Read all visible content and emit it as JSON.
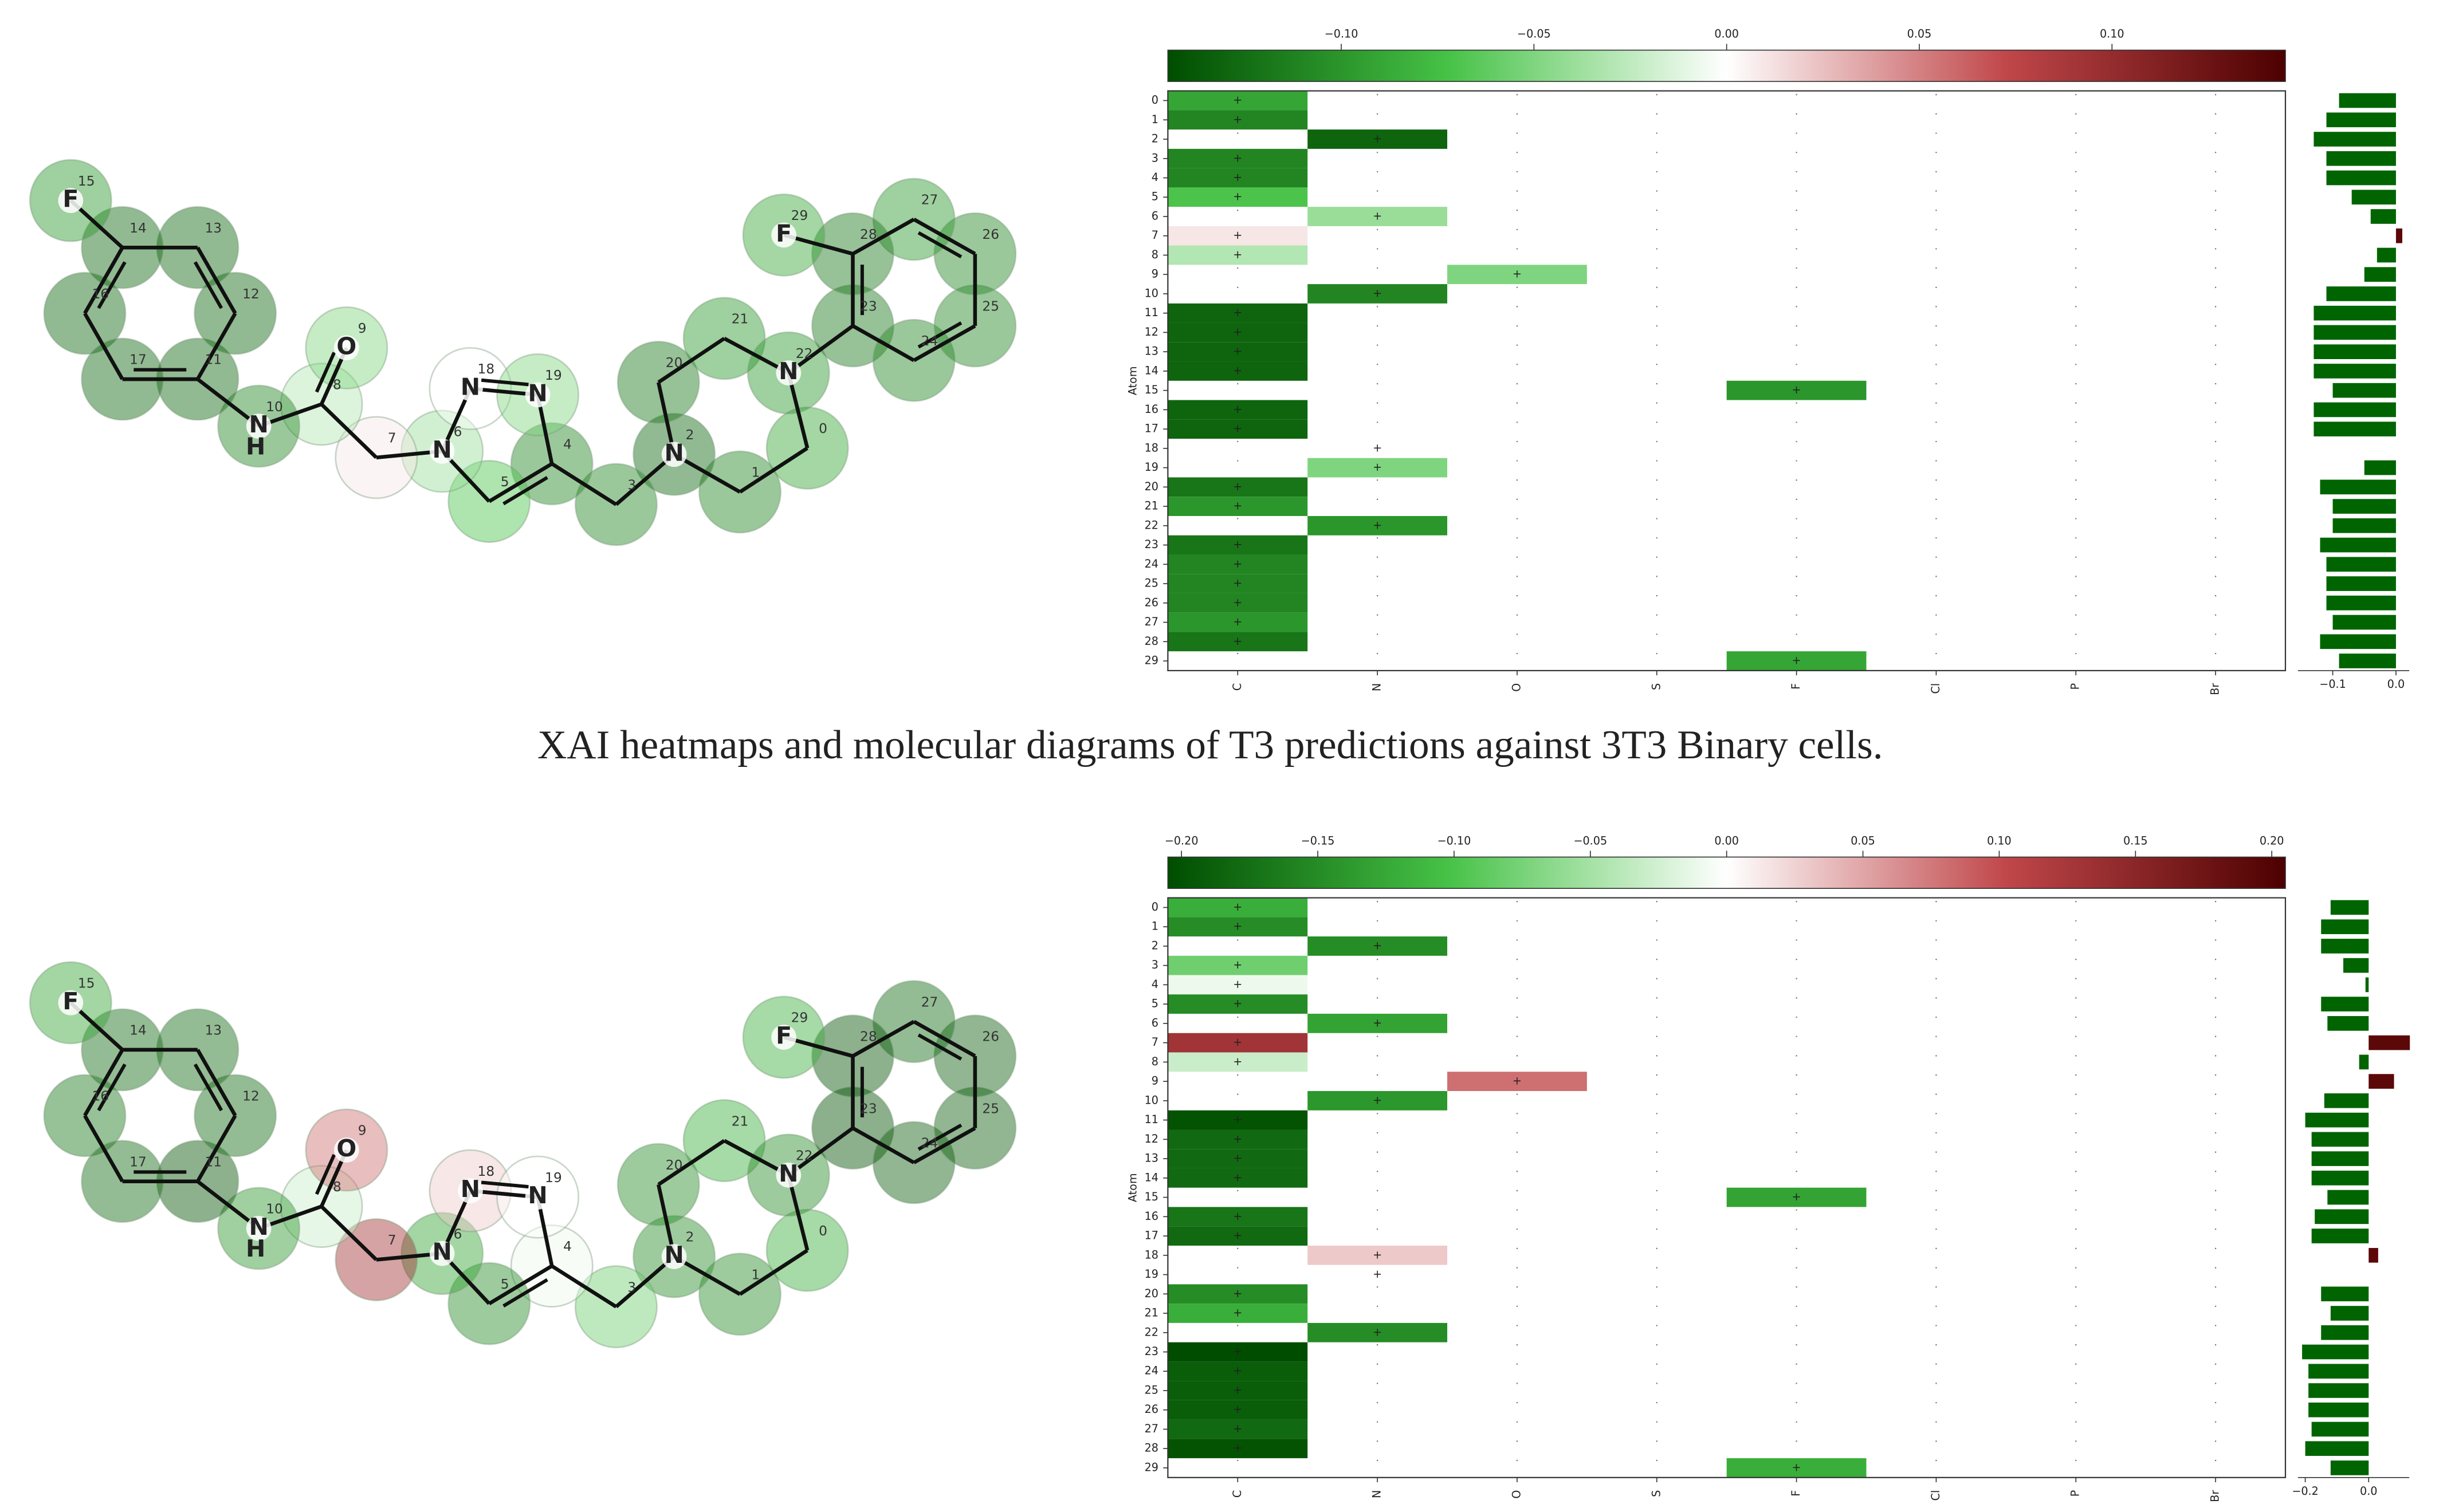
{
  "caption": "XAI heatmaps and molecular diagrams of T3 predictions against 3T3 Binary cells.",
  "panels": [
    {
      "molecule": {
        "symbols": [
          null,
          null,
          "N",
          null,
          null,
          null,
          "N",
          null,
          null,
          "O",
          "N",
          null,
          null,
          null,
          null,
          "F",
          null,
          null,
          "N",
          "N",
          null,
          null,
          "N",
          null,
          null,
          null,
          null,
          null,
          null,
          "F"
        ],
        "hydrogen": "H"
      },
      "heatmap": {
        "ylabel": "Atom",
        "rows": [
          0,
          1,
          2,
          3,
          4,
          5,
          6,
          7,
          8,
          9,
          10,
          11,
          12,
          13,
          14,
          15,
          16,
          17,
          18,
          19,
          20,
          21,
          22,
          23,
          24,
          25,
          26,
          27,
          28,
          29
        ],
        "columns": [
          "C",
          "N",
          "O",
          "S",
          "F",
          "Cl",
          "P",
          "Br"
        ],
        "cell_marker": "+",
        "z": [
          [
            -0.09,
            null,
            null,
            null,
            null,
            null,
            null,
            null
          ],
          [
            -0.11,
            null,
            null,
            null,
            null,
            null,
            null,
            null
          ],
          [
            null,
            -0.13,
            null,
            null,
            null,
            null,
            null,
            null
          ],
          [
            -0.11,
            null,
            null,
            null,
            null,
            null,
            null,
            null
          ],
          [
            -0.11,
            null,
            null,
            null,
            null,
            null,
            null,
            null
          ],
          [
            -0.07,
            null,
            null,
            null,
            null,
            null,
            null,
            null
          ],
          [
            null,
            -0.04,
            null,
            null,
            null,
            null,
            null,
            null
          ],
          [
            0.01,
            null,
            null,
            null,
            null,
            null,
            null,
            null
          ],
          [
            -0.03,
            null,
            null,
            null,
            null,
            null,
            null,
            null
          ],
          [
            null,
            null,
            -0.05,
            null,
            null,
            null,
            null,
            null
          ],
          [
            null,
            -0.11,
            null,
            null,
            null,
            null,
            null,
            null
          ],
          [
            -0.13,
            null,
            null,
            null,
            null,
            null,
            null,
            null
          ],
          [
            -0.13,
            null,
            null,
            null,
            null,
            null,
            null,
            null
          ],
          [
            -0.13,
            null,
            null,
            null,
            null,
            null,
            null,
            null
          ],
          [
            -0.13,
            null,
            null,
            null,
            null,
            null,
            null,
            null
          ],
          [
            null,
            null,
            null,
            null,
            -0.1,
            null,
            null,
            null
          ],
          [
            -0.13,
            null,
            null,
            null,
            null,
            null,
            null,
            null
          ],
          [
            -0.13,
            null,
            null,
            null,
            null,
            null,
            null,
            null
          ],
          [
            null,
            0.0,
            null,
            null,
            null,
            null,
            null,
            null
          ],
          [
            null,
            -0.05,
            null,
            null,
            null,
            null,
            null,
            null
          ],
          [
            -0.12,
            null,
            null,
            null,
            null,
            null,
            null,
            null
          ],
          [
            -0.1,
            null,
            null,
            null,
            null,
            null,
            null,
            null
          ],
          [
            null,
            -0.1,
            null,
            null,
            null,
            null,
            null,
            null
          ],
          [
            -0.12,
            null,
            null,
            null,
            null,
            null,
            null,
            null
          ],
          [
            -0.11,
            null,
            null,
            null,
            null,
            null,
            null,
            null
          ],
          [
            -0.11,
            null,
            null,
            null,
            null,
            null,
            null,
            null
          ],
          [
            -0.11,
            null,
            null,
            null,
            null,
            null,
            null,
            null
          ],
          [
            -0.1,
            null,
            null,
            null,
            null,
            null,
            null,
            null
          ],
          [
            -0.12,
            null,
            null,
            null,
            null,
            null,
            null,
            null
          ],
          [
            null,
            null,
            null,
            null,
            -0.09,
            null,
            null,
            null
          ]
        ],
        "colorbar": {
          "lim": [
            -0.145,
            0.145
          ],
          "ticks": [
            {
              "value": -0.1,
              "label": "−0.10"
            },
            {
              "value": -0.05,
              "label": "−0.05"
            },
            {
              "value": 0,
              "label": "0.00"
            },
            {
              "value": 0.05,
              "label": "0.05"
            },
            {
              "value": 0.1,
              "label": "0.10"
            }
          ]
        },
        "colormap": [
          "#004d00",
          "#46c246",
          "#ffffff",
          "#c0474a",
          "#4d0000"
        ]
      },
      "bars": {
        "values": [
          -0.09,
          -0.11,
          -0.13,
          -0.11,
          -0.11,
          -0.07,
          -0.04,
          0.01,
          -0.03,
          -0.05,
          -0.11,
          -0.13,
          -0.13,
          -0.13,
          -0.13,
          -0.1,
          -0.13,
          -0.13,
          0.0,
          -0.05,
          -0.12,
          -0.1,
          -0.1,
          -0.12,
          -0.11,
          -0.11,
          -0.11,
          -0.1,
          -0.12,
          -0.09
        ],
        "xlim": [
          -0.155,
          0.021
        ],
        "xticks": [
          {
            "value": -0.1,
            "label": "−0.1"
          },
          {
            "value": 0,
            "label": "0.0"
          }
        ],
        "colors": {
          "negative": "#006400",
          "positive": "#5c0808"
        }
      }
    },
    {
      "molecule": {
        "symbols": [
          null,
          null,
          "N",
          null,
          null,
          null,
          "N",
          null,
          null,
          "O",
          "N",
          null,
          null,
          null,
          null,
          "F",
          null,
          null,
          "N",
          "N",
          null,
          null,
          "N",
          null,
          null,
          null,
          null,
          null,
          null,
          "F"
        ],
        "hydrogen": "H"
      },
      "heatmap": {
        "ylabel": "Atom",
        "rows": [
          0,
          1,
          2,
          3,
          4,
          5,
          6,
          7,
          8,
          9,
          10,
          11,
          12,
          13,
          14,
          15,
          16,
          17,
          18,
          19,
          20,
          21,
          22,
          23,
          24,
          25,
          26,
          27,
          28,
          29
        ],
        "columns": [
          "C",
          "N",
          "O",
          "S",
          "F",
          "Cl",
          "P",
          "Br"
        ],
        "cell_marker": "+",
        "z": [
          [
            -0.12,
            null,
            null,
            null,
            null,
            null,
            null,
            null
          ],
          [
            -0.15,
            null,
            null,
            null,
            null,
            null,
            null,
            null
          ],
          [
            null,
            -0.15,
            null,
            null,
            null,
            null,
            null,
            null
          ],
          [
            -0.08,
            null,
            null,
            null,
            null,
            null,
            null,
            null
          ],
          [
            -0.01,
            null,
            null,
            null,
            null,
            null,
            null,
            null
          ],
          [
            -0.15,
            null,
            null,
            null,
            null,
            null,
            null,
            null
          ],
          [
            null,
            -0.13,
            null,
            null,
            null,
            null,
            null,
            null
          ],
          [
            0.13,
            null,
            null,
            null,
            null,
            null,
            null,
            null
          ],
          [
            -0.03,
            null,
            null,
            null,
            null,
            null,
            null,
            null
          ],
          [
            null,
            null,
            0.08,
            null,
            null,
            null,
            null,
            null
          ],
          [
            null,
            -0.14,
            null,
            null,
            null,
            null,
            null,
            null
          ],
          [
            -0.2,
            null,
            null,
            null,
            null,
            null,
            null,
            null
          ],
          [
            -0.18,
            null,
            null,
            null,
            null,
            null,
            null,
            null
          ],
          [
            -0.18,
            null,
            null,
            null,
            null,
            null,
            null,
            null
          ],
          [
            -0.18,
            null,
            null,
            null,
            null,
            null,
            null,
            null
          ],
          [
            null,
            null,
            null,
            null,
            -0.13,
            null,
            null,
            null
          ],
          [
            -0.17,
            null,
            null,
            null,
            null,
            null,
            null,
            null
          ],
          [
            -0.18,
            null,
            null,
            null,
            null,
            null,
            null,
            null
          ],
          [
            null,
            0.03,
            null,
            null,
            null,
            null,
            null,
            null
          ],
          [
            null,
            0.0,
            null,
            null,
            null,
            null,
            null,
            null
          ],
          [
            -0.15,
            null,
            null,
            null,
            null,
            null,
            null,
            null
          ],
          [
            -0.12,
            null,
            null,
            null,
            null,
            null,
            null,
            null
          ],
          [
            null,
            -0.15,
            null,
            null,
            null,
            null,
            null,
            null
          ],
          [
            -0.21,
            null,
            null,
            null,
            null,
            null,
            null,
            null
          ],
          [
            -0.19,
            null,
            null,
            null,
            null,
            null,
            null,
            null
          ],
          [
            -0.19,
            null,
            null,
            null,
            null,
            null,
            null,
            null
          ],
          [
            -0.19,
            null,
            null,
            null,
            null,
            null,
            null,
            null
          ],
          [
            -0.18,
            null,
            null,
            null,
            null,
            null,
            null,
            null
          ],
          [
            -0.2,
            null,
            null,
            null,
            null,
            null,
            null,
            null
          ],
          [
            null,
            null,
            null,
            null,
            -0.12,
            null,
            null,
            null
          ]
        ],
        "colorbar": {
          "lim": [
            -0.205,
            0.205
          ],
          "ticks": [
            {
              "value": -0.2,
              "label": "−0.20"
            },
            {
              "value": -0.15,
              "label": "−0.15"
            },
            {
              "value": -0.1,
              "label": "−0.10"
            },
            {
              "value": -0.05,
              "label": "−0.05"
            },
            {
              "value": 0,
              "label": "0.00"
            },
            {
              "value": 0.05,
              "label": "0.05"
            },
            {
              "value": 0.1,
              "label": "0.10"
            },
            {
              "value": 0.15,
              "label": "0.15"
            },
            {
              "value": 0.2,
              "label": "0.20"
            }
          ]
        },
        "colormap": [
          "#004d00",
          "#46c246",
          "#ffffff",
          "#c0474a",
          "#4d0000"
        ]
      },
      "bars": {
        "values": [
          -0.12,
          -0.15,
          -0.15,
          -0.08,
          -0.01,
          -0.15,
          -0.13,
          0.13,
          -0.03,
          0.08,
          -0.14,
          -0.2,
          -0.18,
          -0.18,
          -0.18,
          -0.13,
          -0.17,
          -0.18,
          0.03,
          0.0,
          -0.15,
          -0.12,
          -0.15,
          -0.21,
          -0.19,
          -0.19,
          -0.19,
          -0.18,
          -0.2,
          -0.12
        ],
        "xlim": [
          -0.223,
          0.128
        ],
        "xticks": [
          {
            "value": -0.2,
            "label": "−0.2"
          },
          {
            "value": 0,
            "label": "0.0"
          }
        ],
        "colors": {
          "negative": "#006400",
          "positive": "#5c0808"
        }
      }
    }
  ]
}
